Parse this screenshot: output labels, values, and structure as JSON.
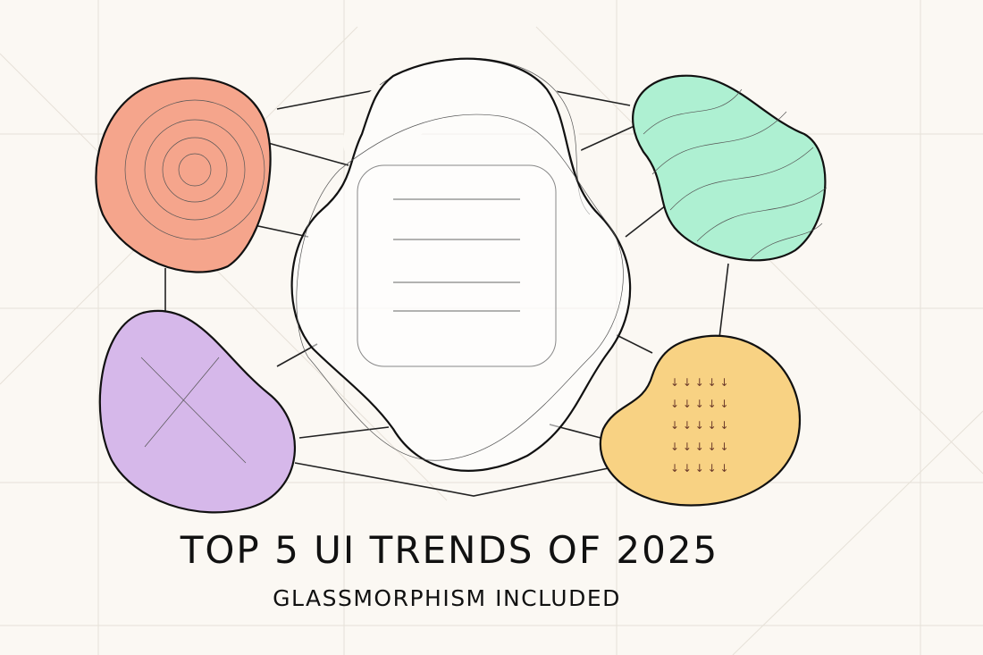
{
  "header": {
    "title": "TOP 5 UI TRENDS OF 2025",
    "subtitle": "GLASSMORPHISM INCLUDED"
  }
}
